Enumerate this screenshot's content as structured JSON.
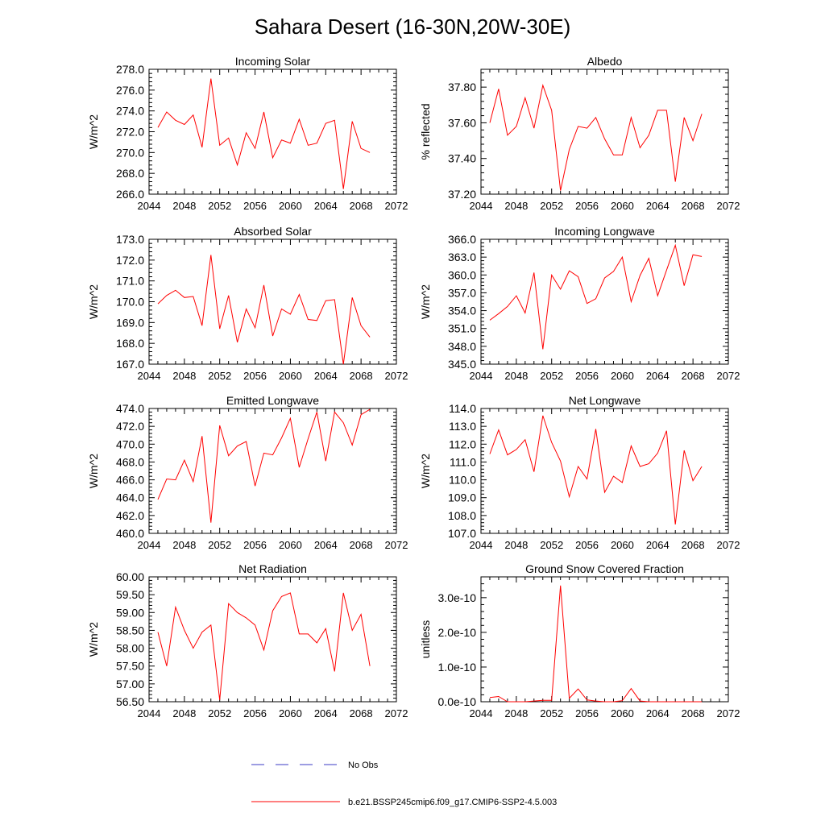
{
  "title": "Sahara Desert (16-30N,20W-30E)",
  "legend": {
    "obs_label": "No Obs",
    "obs_color": "#3b3bc4",
    "model_label": "b.e21.BSSP245cmip6.f09_g17.CMIP6-SSP2-4.5.003",
    "model_color": "#ff0000"
  },
  "x_ticks": [
    "2044",
    "2048",
    "2052",
    "2056",
    "2060",
    "2064",
    "2068",
    "2072"
  ],
  "chart_data": [
    {
      "type": "line",
      "title": "Incoming Solar",
      "ylabel": "W/m^2",
      "xlim": [
        2044,
        2072
      ],
      "ylim": [
        266.0,
        278.0
      ],
      "yticks": [
        "266.0",
        "268.0",
        "270.0",
        "272.0",
        "274.0",
        "276.0",
        "278.0"
      ],
      "x": [
        2045,
        2046,
        2047,
        2048,
        2049,
        2050,
        2051,
        2052,
        2053,
        2054,
        2055,
        2056,
        2057,
        2058,
        2059,
        2060,
        2061,
        2062,
        2063,
        2064,
        2065,
        2066,
        2067,
        2068,
        2069
      ],
      "series": [
        {
          "values": [
            272.4,
            273.9,
            273.1,
            272.7,
            273.6,
            270.5,
            277.1,
            270.7,
            271.4,
            268.8,
            271.9,
            270.4,
            273.9,
            269.5,
            271.2,
            270.9,
            273.2,
            270.7,
            270.9,
            272.8,
            273.1,
            266.5,
            273.0,
            270.4,
            270.0
          ]
        }
      ]
    },
    {
      "type": "line",
      "title": "Albedo",
      "ylabel": "% reflected",
      "xlim": [
        2044,
        2072
      ],
      "ylim": [
        37.2,
        37.9
      ],
      "yticks": [
        "37.20",
        "37.40",
        "37.60",
        "37.80"
      ],
      "x": [
        2045,
        2046,
        2047,
        2048,
        2049,
        2050,
        2051,
        2052,
        2053,
        2054,
        2055,
        2056,
        2057,
        2058,
        2059,
        2060,
        2061,
        2062,
        2063,
        2064,
        2065,
        2066,
        2067,
        2068,
        2069
      ],
      "series": [
        {
          "values": [
            37.6,
            37.79,
            37.53,
            37.58,
            37.74,
            37.57,
            37.81,
            37.67,
            37.22,
            37.45,
            37.58,
            37.57,
            37.63,
            37.51,
            37.42,
            37.42,
            37.63,
            37.46,
            37.53,
            37.67,
            37.67,
            37.27,
            37.63,
            37.5,
            37.65
          ]
        }
      ]
    },
    {
      "type": "line",
      "title": "Absorbed Solar",
      "ylabel": "W/m^2",
      "xlim": [
        2044,
        2072
      ],
      "ylim": [
        167.0,
        173.0
      ],
      "yticks": [
        "167.0",
        "168.0",
        "169.0",
        "170.0",
        "171.0",
        "172.0",
        "173.0"
      ],
      "x": [
        2045,
        2046,
        2047,
        2048,
        2049,
        2050,
        2051,
        2052,
        2053,
        2054,
        2055,
        2056,
        2057,
        2058,
        2059,
        2060,
        2061,
        2062,
        2063,
        2064,
        2065,
        2066,
        2067,
        2068,
        2069
      ],
      "series": [
        {
          "values": [
            169.9,
            170.3,
            170.55,
            170.2,
            170.25,
            168.85,
            172.25,
            168.7,
            170.3,
            168.05,
            169.65,
            168.75,
            170.8,
            168.35,
            169.65,
            169.4,
            170.35,
            169.15,
            169.1,
            170.05,
            170.1,
            167.0,
            170.2,
            168.85,
            168.3
          ]
        }
      ]
    },
    {
      "type": "line",
      "title": "Incoming Longwave",
      "ylabel": "W/m^2",
      "xlim": [
        2044,
        2072
      ],
      "ylim": [
        345.0,
        366.0
      ],
      "yticks": [
        "345.0",
        "348.0",
        "351.0",
        "354.0",
        "357.0",
        "360.0",
        "363.0",
        "366.0"
      ],
      "x": [
        2045,
        2046,
        2047,
        2048,
        2049,
        2050,
        2051,
        2052,
        2053,
        2054,
        2055,
        2056,
        2057,
        2058,
        2059,
        2060,
        2061,
        2062,
        2063,
        2064,
        2065,
        2066,
        2067,
        2068,
        2069
      ],
      "series": [
        {
          "values": [
            352.4,
            353.5,
            354.7,
            356.5,
            353.6,
            360.4,
            347.5,
            360.0,
            357.6,
            360.7,
            359.7,
            355.2,
            356.0,
            359.5,
            360.6,
            363.0,
            355.5,
            359.9,
            362.8,
            356.5,
            360.8,
            365.0,
            358.2,
            363.4,
            363.1
          ]
        }
      ]
    },
    {
      "type": "line",
      "title": "Emitted Longwave",
      "ylabel": "W/m^2",
      "xlim": [
        2044,
        2072
      ],
      "ylim": [
        460.0,
        474.0
      ],
      "yticks": [
        "460.0",
        "462.0",
        "464.0",
        "466.0",
        "468.0",
        "470.0",
        "472.0",
        "474.0"
      ],
      "x": [
        2045,
        2046,
        2047,
        2048,
        2049,
        2050,
        2051,
        2052,
        2053,
        2054,
        2055,
        2056,
        2057,
        2058,
        2059,
        2060,
        2061,
        2062,
        2063,
        2064,
        2065,
        2066,
        2067,
        2068,
        2069
      ],
      "series": [
        {
          "values": [
            463.8,
            466.1,
            466.0,
            468.2,
            465.8,
            470.9,
            461.2,
            472.1,
            468.7,
            469.8,
            470.3,
            465.3,
            469.0,
            468.8,
            470.7,
            472.9,
            467.4,
            470.6,
            473.6,
            468.1,
            473.6,
            472.4,
            469.9,
            473.3,
            473.9
          ]
        }
      ]
    },
    {
      "type": "line",
      "title": "Net Longwave",
      "ylabel": "W/m^2",
      "xlim": [
        2044,
        2072
      ],
      "ylim": [
        107.0,
        114.0
      ],
      "yticks": [
        "107.0",
        "108.0",
        "109.0",
        "110.0",
        "111.0",
        "112.0",
        "113.0",
        "114.0"
      ],
      "x": [
        2045,
        2046,
        2047,
        2048,
        2049,
        2050,
        2051,
        2052,
        2053,
        2054,
        2055,
        2056,
        2057,
        2058,
        2059,
        2060,
        2061,
        2062,
        2063,
        2064,
        2065,
        2066,
        2067,
        2068,
        2069
      ],
      "series": [
        {
          "values": [
            111.45,
            112.8,
            111.4,
            111.7,
            112.25,
            110.45,
            113.6,
            112.1,
            111.05,
            109.05,
            110.75,
            110.05,
            112.85,
            109.3,
            110.2,
            109.85,
            111.9,
            110.75,
            110.9,
            111.5,
            112.75,
            107.5,
            111.65,
            109.95,
            110.75
          ]
        }
      ]
    },
    {
      "type": "line",
      "title": "Net Radiation",
      "ylabel": "W/m^2",
      "xlim": [
        2044,
        2072
      ],
      "ylim": [
        56.5,
        60.0
      ],
      "yticks": [
        "56.50",
        "57.00",
        "57.50",
        "58.00",
        "58.50",
        "59.00",
        "59.50",
        "60.00"
      ],
      "x": [
        2045,
        2046,
        2047,
        2048,
        2049,
        2050,
        2051,
        2052,
        2053,
        2054,
        2055,
        2056,
        2057,
        2058,
        2059,
        2060,
        2061,
        2062,
        2063,
        2064,
        2065,
        2066,
        2067,
        2068,
        2069
      ],
      "series": [
        {
          "values": [
            58.45,
            57.5,
            59.15,
            58.5,
            58.0,
            58.45,
            58.65,
            56.55,
            59.25,
            59.0,
            58.85,
            58.65,
            57.95,
            59.05,
            59.45,
            59.55,
            58.4,
            58.4,
            58.15,
            58.55,
            57.35,
            59.55,
            58.5,
            58.95,
            57.5
          ]
        }
      ]
    },
    {
      "type": "line",
      "title": "Ground Snow Covered Fraction",
      "ylabel": "unitless",
      "xlim": [
        2044,
        2072
      ],
      "ylim": [
        0,
        3.6e-10
      ],
      "yticks": [
        "0.0e-10",
        "1.0e-10",
        "2.0e-10",
        "3.0e-10"
      ],
      "x": [
        2045,
        2046,
        2047,
        2048,
        2049,
        2050,
        2051,
        2052,
        2053,
        2054,
        2055,
        2056,
        2057,
        2058,
        2059,
        2060,
        2061,
        2062,
        2063,
        2064,
        2065,
        2066,
        2067,
        2068,
        2069
      ],
      "series": [
        {
          "values": [
            1.2e-11,
            1.5e-11,
            0,
            0,
            0,
            2e-12,
            4e-12,
            4e-12,
            3.35e-10,
            1e-11,
            3.7e-11,
            5e-12,
            2e-12,
            0,
            0,
            3e-12,
            3.8e-11,
            2e-12,
            0,
            0,
            0,
            0,
            0,
            0,
            0
          ]
        }
      ]
    }
  ]
}
